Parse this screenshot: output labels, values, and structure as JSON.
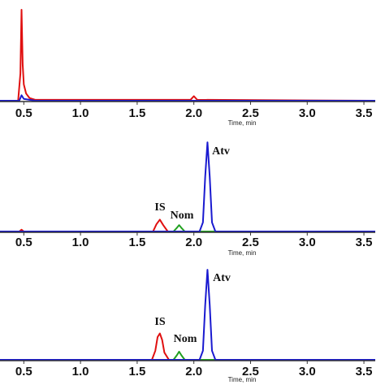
{
  "chart_data": [
    {
      "type": "line",
      "xlabel": "Time, min",
      "xlim": [
        0.29,
        3.6
      ],
      "ylim": [
        0,
        100
      ],
      "xticks": [
        0.5,
        {
          "value": 1,
          "label": "1.0"
        },
        1.5,
        {
          "value": 2,
          "label": "2.0"
        },
        2.5,
        {
          "value": 3,
          "label": "3.0"
        },
        3.5
      ],
      "series": [
        {
          "color": "#e01010",
          "x": [
            0.29,
            0.45,
            0.47,
            0.48,
            0.49,
            0.5,
            0.52,
            0.55,
            0.6,
            1.97,
            2.0,
            2.03,
            3.6
          ],
          "values": [
            0,
            0,
            30,
            100,
            40,
            18,
            8,
            3,
            1,
            1,
            5,
            1,
            0
          ]
        },
        {
          "color": "#1a1ad0",
          "x": [
            0.29,
            0.46,
            0.48,
            0.5,
            0.6,
            3.6
          ],
          "values": [
            0,
            0,
            6,
            2,
            0,
            0
          ]
        }
      ],
      "annotations": []
    },
    {
      "type": "line",
      "xlabel": "Time, min",
      "xlim": [
        0.29,
        3.6
      ],
      "ylim": [
        0,
        100
      ],
      "xticks": [
        0.5,
        {
          "value": 1,
          "label": "1.0"
        },
        1.5,
        {
          "value": 2,
          "label": "2.0"
        },
        2.5,
        {
          "value": 3,
          "label": "3.0"
        },
        3.5
      ],
      "series": [
        {
          "color": "#e01010",
          "x": [
            0.29,
            0.46,
            0.48,
            0.5,
            1.64,
            1.67,
            1.7,
            1.73,
            1.77,
            3.6
          ],
          "values": [
            0,
            0,
            2,
            0,
            0,
            8,
            13,
            7,
            0,
            0
          ]
        },
        {
          "color": "#20a020",
          "x": [
            0.29,
            1.82,
            1.85,
            1.87,
            1.89,
            1.92,
            3.6
          ],
          "values": [
            0,
            0,
            4,
            7,
            4,
            0,
            0
          ]
        },
        {
          "color": "#1a1ad0",
          "x": [
            0.29,
            2.05,
            2.08,
            2.1,
            2.12,
            2.14,
            2.16,
            2.19,
            3.6
          ],
          "values": [
            0,
            0,
            10,
            60,
            98,
            60,
            10,
            0,
            0
          ]
        }
      ],
      "annotations": [
        "IS",
        "Nom",
        "Atv"
      ]
    },
    {
      "type": "line",
      "xlabel": "Time, min",
      "xlim": [
        0.29,
        3.6
      ],
      "ylim": [
        0,
        100
      ],
      "xticks": [
        0.5,
        {
          "value": 1,
          "label": "1.0"
        },
        1.5,
        {
          "value": 2,
          "label": "2.0"
        },
        2.5,
        {
          "value": 3,
          "label": "3.0"
        },
        3.5
      ],
      "series": [
        {
          "color": "#e01010",
          "x": [
            0.29,
            1.63,
            1.66,
            1.68,
            1.7,
            1.72,
            1.74,
            1.78,
            3.6
          ],
          "values": [
            0,
            0,
            10,
            25,
            29,
            22,
            8,
            0,
            0
          ]
        },
        {
          "color": "#20a020",
          "x": [
            0.29,
            1.82,
            1.85,
            1.87,
            1.89,
            1.92,
            3.6
          ],
          "values": [
            0,
            0,
            5,
            9,
            5,
            0,
            0
          ]
        },
        {
          "color": "#1a1ad0",
          "x": [
            0.29,
            2.05,
            2.08,
            2.1,
            2.12,
            2.14,
            2.16,
            2.19,
            3.6
          ],
          "values": [
            0,
            0,
            10,
            60,
            99,
            60,
            10,
            0,
            0
          ]
        }
      ],
      "annotations": [
        "IS",
        "Nom",
        "Atv"
      ]
    }
  ]
}
